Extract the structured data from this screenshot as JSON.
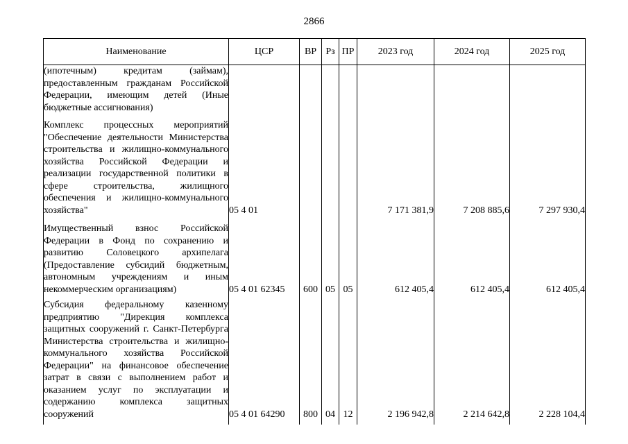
{
  "page_number": "2866",
  "headers": {
    "name": "Наименование",
    "csr": "ЦСР",
    "vr": "ВР",
    "rz": "Рз",
    "pr": "ПР",
    "y2023": "2023 год",
    "y2024": "2024 год",
    "y2025": "2025 год"
  },
  "rows": [
    {
      "name": "(ипотечным) кредитам (займам), предоставленным гражданам Российской Федерации, имеющим детей (Иные бюджетные ассигнования)",
      "csr": "",
      "vr": "",
      "rz": "",
      "pr": "",
      "y2023": "",
      "y2024": "",
      "y2025": ""
    },
    {
      "name": "Комплекс процессных мероприятий \"Обеспечение деятельности Министерства строительства и жилищно-коммунального хозяйства Российской Федерации и реализации государственной политики в сфере строительства, жилищного обеспечения и жилищно-коммунального хозяйства\"",
      "csr": "05 4 01",
      "vr": "",
      "rz": "",
      "pr": "",
      "y2023": "7 171 381,9",
      "y2024": "7 208 885,6",
      "y2025": "7 297 930,4"
    },
    {
      "name": "Имущественный взнос Российской Федерации в Фонд по сохранению и развитию Соловецкого архипелага (Предоставление субсидий бюджетным, автономным учреждениям и иным некоммерческим организациям)",
      "csr": "05 4 01 62345",
      "vr": "600",
      "rz": "05",
      "pr": "05",
      "y2023": "612 405,4",
      "y2024": "612 405,4",
      "y2025": "612 405,4"
    },
    {
      "name": "Субсидия федеральному казенному предприятию \"Дирекция комплекса защитных сооружений г. Санкт-Петербурга Министерства строительства и жилищно-коммунального хозяйства Российской Федерации\" на финансовое обеспечение затрат в связи с выполнением работ и оказанием услуг по эксплуатации и содержанию комплекса защитных сооружений",
      "csr": "05 4 01 64290",
      "vr": "800",
      "rz": "04",
      "pr": "12",
      "y2023": "2 196 942,8",
      "y2024": "2 214 642,8",
      "y2025": "2 228 104,4"
    }
  ]
}
